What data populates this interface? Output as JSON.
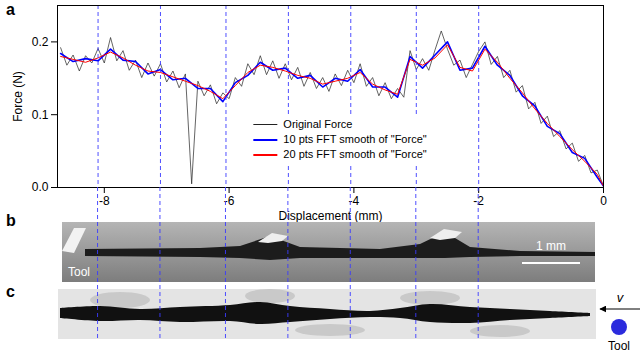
{
  "chart_data": {
    "type": "line",
    "panel_label": "a",
    "xlabel": "Displacement (mm)",
    "ylabel": "Force (N)",
    "xlim": [
      -8.75,
      0
    ],
    "xticks": [
      -8,
      -6,
      -4,
      -2,
      0
    ],
    "ylim": [
      0,
      0.25
    ],
    "yticks": [
      {
        "value": 0,
        "label": "0.0"
      },
      {
        "value": 0.1,
        "label": "0.1"
      },
      {
        "value": 0.2,
        "label": "0.2"
      }
    ],
    "legend": "bottom",
    "series": [
      {
        "name": "Original Force",
        "color": "#222222",
        "x": [
          -8.7,
          -8.6,
          -8.5,
          -8.4,
          -8.3,
          -8.2,
          -8.1,
          -8.0,
          -7.9,
          -7.8,
          -7.7,
          -7.6,
          -7.5,
          -7.4,
          -7.3,
          -7.2,
          -7.1,
          -7.0,
          -6.9,
          -6.8,
          -6.7,
          -6.6,
          -6.5,
          -6.4,
          -6.3,
          -6.2,
          -6.1,
          -6.0,
          -5.9,
          -5.8,
          -5.7,
          -5.6,
          -5.5,
          -5.4,
          -5.3,
          -5.2,
          -5.1,
          -5.0,
          -4.9,
          -4.8,
          -4.7,
          -4.6,
          -4.5,
          -4.4,
          -4.3,
          -4.2,
          -4.1,
          -4.0,
          -3.9,
          -3.8,
          -3.7,
          -3.6,
          -3.5,
          -3.4,
          -3.3,
          -3.2,
          -3.1,
          -3.0,
          -2.9,
          -2.8,
          -2.7,
          -2.6,
          -2.5,
          -2.4,
          -2.3,
          -2.2,
          -2.1,
          -2.0,
          -1.9,
          -1.8,
          -1.7,
          -1.6,
          -1.5,
          -1.4,
          -1.3,
          -1.2,
          -1.1,
          -1.0,
          -0.9,
          -0.8,
          -0.7,
          -0.6,
          -0.5,
          -0.4,
          -0.3,
          -0.2,
          -0.1,
          0.0
        ],
        "values": [
          0.192,
          0.168,
          0.182,
          0.16,
          0.181,
          0.171,
          0.191,
          0.171,
          0.206,
          0.174,
          0.188,
          0.161,
          0.175,
          0.151,
          0.171,
          0.153,
          0.17,
          0.145,
          0.16,
          0.137,
          0.156,
          0.005,
          0.146,
          0.126,
          0.141,
          0.115,
          0.13,
          0.122,
          0.151,
          0.139,
          0.17,
          0.155,
          0.181,
          0.155,
          0.174,
          0.15,
          0.17,
          0.148,
          0.165,
          0.139,
          0.158,
          0.136,
          0.151,
          0.132,
          0.156,
          0.14,
          0.161,
          0.144,
          0.17,
          0.139,
          0.151,
          0.126,
          0.144,
          0.122,
          0.136,
          0.124,
          0.188,
          0.162,
          0.177,
          0.161,
          0.189,
          0.215,
          0.19,
          0.168,
          0.175,
          0.151,
          0.169,
          0.187,
          0.2,
          0.169,
          0.18,
          0.151,
          0.161,
          0.131,
          0.14,
          0.108,
          0.117,
          0.088,
          0.098,
          0.07,
          0.078,
          0.053,
          0.061,
          0.036,
          0.044,
          0.02,
          0.024,
          0.002
        ]
      },
      {
        "name": "10 pts FFT smooth of \"Force\"",
        "color": "#0000ff",
        "x": [
          -8.7,
          -8.5,
          -8.3,
          -8.1,
          -7.9,
          -7.7,
          -7.5,
          -7.3,
          -7.1,
          -6.9,
          -6.7,
          -6.5,
          -6.3,
          -6.1,
          -5.9,
          -5.7,
          -5.5,
          -5.3,
          -5.1,
          -4.9,
          -4.7,
          -4.5,
          -4.3,
          -4.1,
          -3.9,
          -3.7,
          -3.5,
          -3.3,
          -3.1,
          -2.9,
          -2.7,
          -2.5,
          -2.3,
          -2.1,
          -1.9,
          -1.7,
          -1.5,
          -1.3,
          -1.1,
          -0.9,
          -0.7,
          -0.5,
          -0.3,
          -0.1,
          0.0
        ],
        "values": [
          0.184,
          0.173,
          0.177,
          0.174,
          0.19,
          0.175,
          0.173,
          0.156,
          0.162,
          0.148,
          0.15,
          0.136,
          0.136,
          0.118,
          0.144,
          0.154,
          0.172,
          0.161,
          0.164,
          0.15,
          0.154,
          0.138,
          0.15,
          0.146,
          0.162,
          0.138,
          0.138,
          0.124,
          0.18,
          0.164,
          0.182,
          0.2,
          0.161,
          0.164,
          0.194,
          0.168,
          0.154,
          0.126,
          0.112,
          0.084,
          0.074,
          0.048,
          0.04,
          0.014,
          0.002
        ]
      },
      {
        "name": "20 pts FFT smooth of \"Force\"",
        "color": "#ff0000",
        "x": [
          -8.7,
          -8.5,
          -8.3,
          -8.1,
          -7.9,
          -7.7,
          -7.5,
          -7.3,
          -7.1,
          -6.9,
          -6.7,
          -6.5,
          -6.3,
          -6.1,
          -5.9,
          -5.7,
          -5.5,
          -5.3,
          -5.1,
          -4.9,
          -4.7,
          -4.5,
          -4.3,
          -4.1,
          -3.9,
          -3.7,
          -3.5,
          -3.3,
          -3.1,
          -2.9,
          -2.7,
          -2.5,
          -2.3,
          -2.1,
          -1.9,
          -1.7,
          -1.5,
          -1.3,
          -1.1,
          -0.9,
          -0.7,
          -0.5,
          -0.3,
          -0.1,
          0.0
        ],
        "values": [
          0.18,
          0.176,
          0.172,
          0.178,
          0.186,
          0.178,
          0.168,
          0.16,
          0.158,
          0.152,
          0.146,
          0.14,
          0.132,
          0.122,
          0.14,
          0.158,
          0.168,
          0.165,
          0.16,
          0.154,
          0.15,
          0.142,
          0.146,
          0.15,
          0.158,
          0.142,
          0.134,
          0.128,
          0.176,
          0.168,
          0.178,
          0.196,
          0.165,
          0.16,
          0.19,
          0.172,
          0.15,
          0.13,
          0.108,
          0.088,
          0.07,
          0.052,
          0.036,
          0.018,
          0.002
        ]
      }
    ],
    "reference_lines": {
      "x": [
        -8.1,
        -7.1,
        -6.05,
        -5.05,
        -4.05,
        -3.0,
        -2.0
      ],
      "color": "#3b3bff",
      "line_style": "dashed"
    }
  },
  "panels": [
    {
      "label": "b",
      "annotations": [
        "Tool"
      ],
      "scale_bar": "1 mm"
    },
    {
      "label": "c",
      "velocity_label": "v",
      "tool_label": "Tool",
      "tool_color": "#2b2bdd"
    }
  ]
}
